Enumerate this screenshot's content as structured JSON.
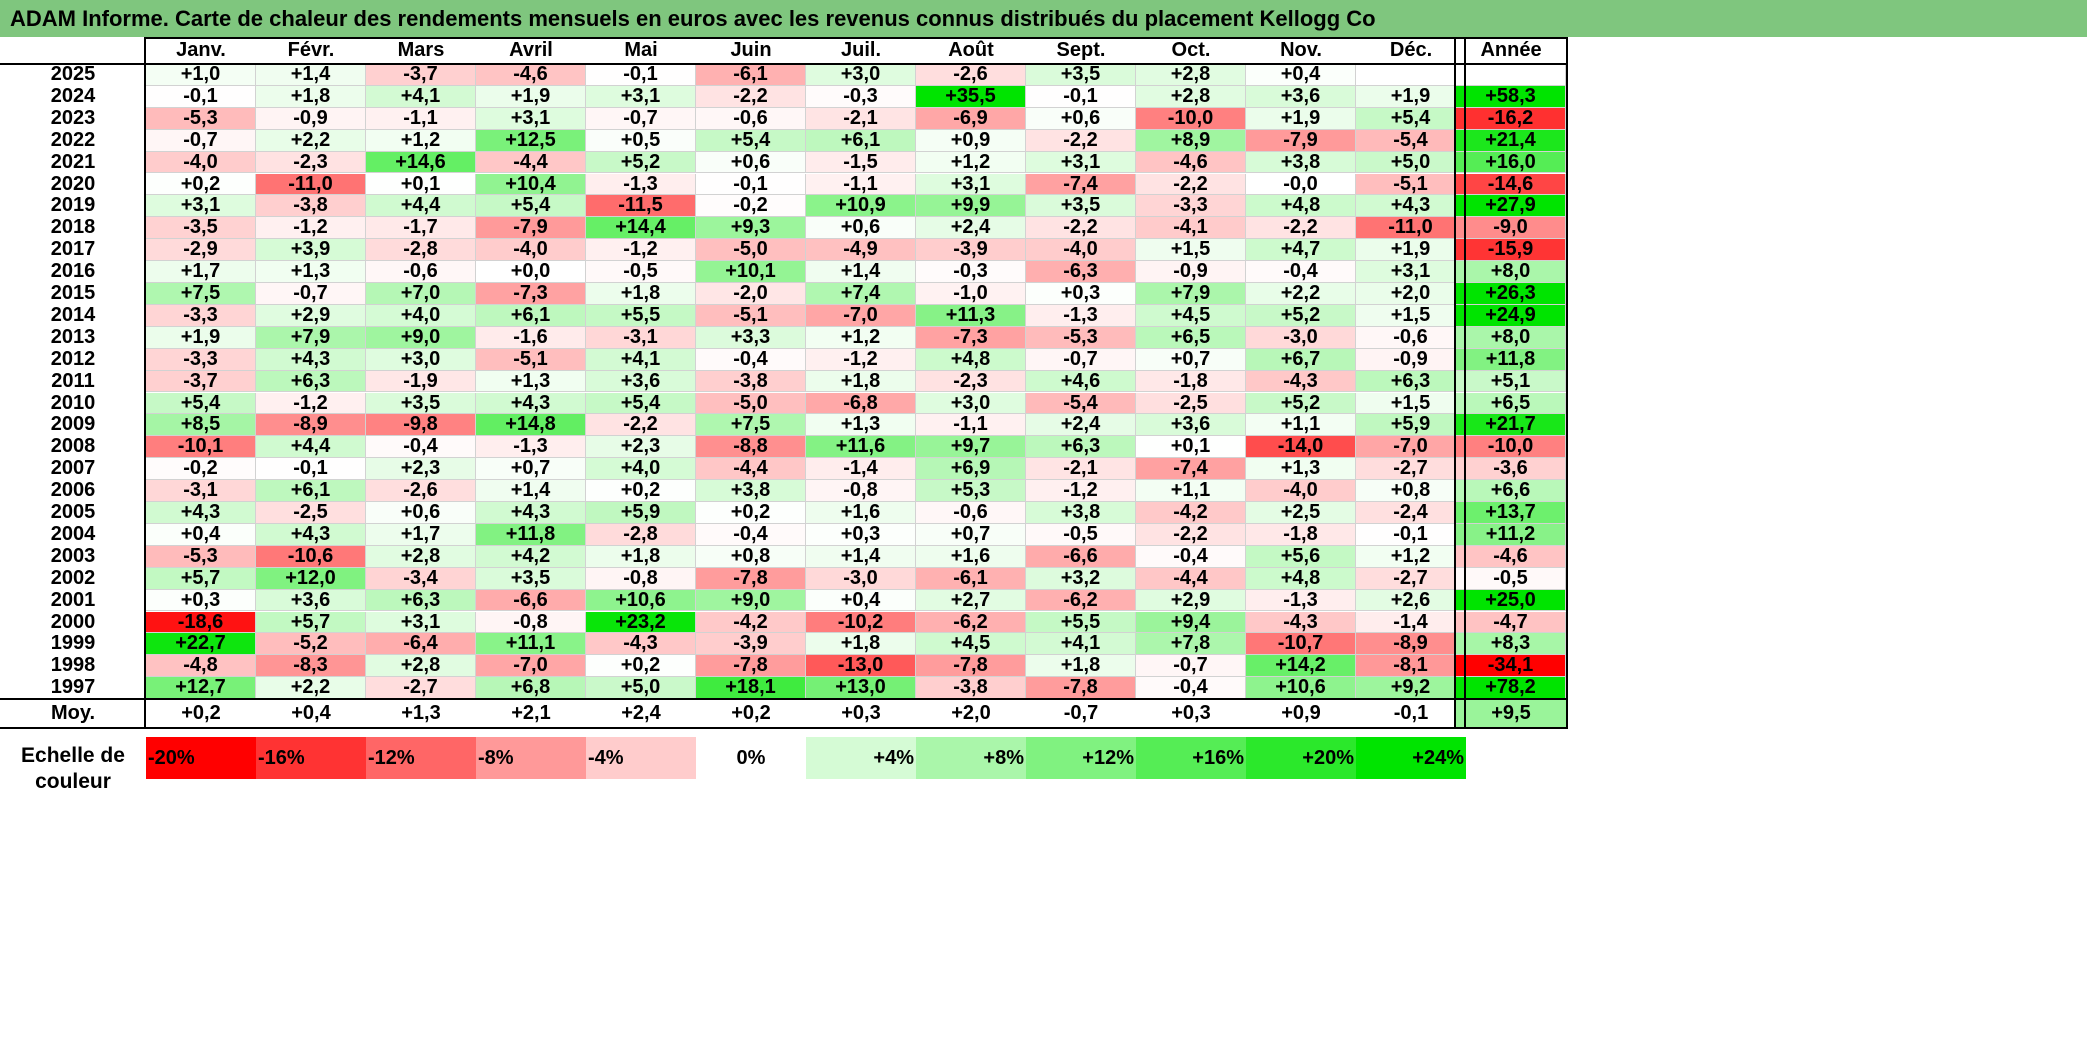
{
  "title": "ADAM Informe. Carte de chaleur des rendements mensuels en euros avec les revenus connus distribués du placement Kellogg Co",
  "chart_data": {
    "type": "heatmap",
    "columns": [
      "Janv.",
      "Févr.",
      "Mars",
      "Avril",
      "Mai",
      "Juin",
      "Juil.",
      "Août",
      "Sept.",
      "Oct.",
      "Nov.",
      "Déc."
    ],
    "year_header": "Année",
    "rows": [
      {
        "year": "2025",
        "values": [
          "+1,0",
          "+1,4",
          "-3,7",
          "-4,6",
          "-0,1",
          "-6,1",
          "+3,0",
          "-2,6",
          "+3,5",
          "+2,8",
          "+0,4",
          ""
        ],
        "annual": ""
      },
      {
        "year": "2024",
        "values": [
          "-0,1",
          "+1,8",
          "+4,1",
          "+1,9",
          "+3,1",
          "-2,2",
          "-0,3",
          "+35,5",
          "-0,1",
          "+2,8",
          "+3,6",
          "+1,9"
        ],
        "annual": "+58,3"
      },
      {
        "year": "2023",
        "values": [
          "-5,3",
          "-0,9",
          "-1,1",
          "+3,1",
          "-0,7",
          "-0,6",
          "-2,1",
          "-6,9",
          "+0,6",
          "-10,0",
          "+1,9",
          "+5,4"
        ],
        "annual": "-16,2"
      },
      {
        "year": "2022",
        "values": [
          "-0,7",
          "+2,2",
          "+1,2",
          "+12,5",
          "+0,5",
          "+5,4",
          "+6,1",
          "+0,9",
          "-2,2",
          "+8,9",
          "-7,9",
          "-5,4"
        ],
        "annual": "+21,4"
      },
      {
        "year": "2021",
        "values": [
          "-4,0",
          "-2,3",
          "+14,6",
          "-4,4",
          "+5,2",
          "+0,6",
          "-1,5",
          "+1,2",
          "+3,1",
          "-4,6",
          "+3,8",
          "+5,0"
        ],
        "annual": "+16,0"
      },
      {
        "year": "2020",
        "values": [
          "+0,2",
          "-11,0",
          "+0,1",
          "+10,4",
          "-1,3",
          "-0,1",
          "-1,1",
          "+3,1",
          "-7,4",
          "-2,2",
          "-0,0",
          "-5,1"
        ],
        "annual": "-14,6"
      },
      {
        "year": "2019",
        "values": [
          "+3,1",
          "-3,8",
          "+4,4",
          "+5,4",
          "-11,5",
          "-0,2",
          "+10,9",
          "+9,9",
          "+3,5",
          "-3,3",
          "+4,8",
          "+4,3"
        ],
        "annual": "+27,9"
      },
      {
        "year": "2018",
        "values": [
          "-3,5",
          "-1,2",
          "-1,7",
          "-7,9",
          "+14,4",
          "+9,3",
          "+0,6",
          "+2,4",
          "-2,2",
          "-4,1",
          "-2,2",
          "-11,0"
        ],
        "annual": "-9,0"
      },
      {
        "year": "2017",
        "values": [
          "-2,9",
          "+3,9",
          "-2,8",
          "-4,0",
          "-1,2",
          "-5,0",
          "-4,9",
          "-3,9",
          "-4,0",
          "+1,5",
          "+4,7",
          "+1,9"
        ],
        "annual": "-15,9"
      },
      {
        "year": "2016",
        "values": [
          "+1,7",
          "+1,3",
          "-0,6",
          "+0,0",
          "-0,5",
          "+10,1",
          "+1,4",
          "-0,3",
          "-6,3",
          "-0,9",
          "-0,4",
          "+3,1"
        ],
        "annual": "+8,0"
      },
      {
        "year": "2015",
        "values": [
          "+7,5",
          "-0,7",
          "+7,0",
          "-7,3",
          "+1,8",
          "-2,0",
          "+7,4",
          "-1,0",
          "+0,3",
          "+7,9",
          "+2,2",
          "+2,0"
        ],
        "annual": "+26,3"
      },
      {
        "year": "2014",
        "values": [
          "-3,3",
          "+2,9",
          "+4,0",
          "+6,1",
          "+5,5",
          "-5,1",
          "-7,0",
          "+11,3",
          "-1,3",
          "+4,5",
          "+5,2",
          "+1,5"
        ],
        "annual": "+24,9"
      },
      {
        "year": "2013",
        "values": [
          "+1,9",
          "+7,9",
          "+9,0",
          "-1,6",
          "-3,1",
          "+3,3",
          "+1,2",
          "-7,3",
          "-5,3",
          "+6,5",
          "-3,0",
          "-0,6"
        ],
        "annual": "+8,0"
      },
      {
        "year": "2012",
        "values": [
          "-3,3",
          "+4,3",
          "+3,0",
          "-5,1",
          "+4,1",
          "-0,4",
          "-1,2",
          "+4,8",
          "-0,7",
          "+0,7",
          "+6,7",
          "-0,9"
        ],
        "annual": "+11,8"
      },
      {
        "year": "2011",
        "values": [
          "-3,7",
          "+6,3",
          "-1,9",
          "+1,3",
          "+3,6",
          "-3,8",
          "+1,8",
          "-2,3",
          "+4,6",
          "-1,8",
          "-4,3",
          "+6,3"
        ],
        "annual": "+5,1"
      },
      {
        "year": "2010",
        "values": [
          "+5,4",
          "-1,2",
          "+3,5",
          "+4,3",
          "+5,4",
          "-5,0",
          "-6,8",
          "+3,0",
          "-5,4",
          "-2,5",
          "+5,2",
          "+1,5"
        ],
        "annual": "+6,5"
      },
      {
        "year": "2009",
        "values": [
          "+8,5",
          "-8,9",
          "-9,8",
          "+14,8",
          "-2,2",
          "+7,5",
          "+1,3",
          "-1,1",
          "+2,4",
          "+3,6",
          "+1,1",
          "+5,9"
        ],
        "annual": "+21,7"
      },
      {
        "year": "2008",
        "values": [
          "-10,1",
          "+4,4",
          "-0,4",
          "-1,3",
          "+2,3",
          "-8,8",
          "+11,6",
          "+9,7",
          "+6,3",
          "+0,1",
          "-14,0",
          "-7,0"
        ],
        "annual": "-10,0"
      },
      {
        "year": "2007",
        "values": [
          "-0,2",
          "-0,1",
          "+2,3",
          "+0,7",
          "+4,0",
          "-4,4",
          "-1,4",
          "+6,9",
          "-2,1",
          "-7,4",
          "+1,3",
          "-2,7"
        ],
        "annual": "-3,6"
      },
      {
        "year": "2006",
        "values": [
          "-3,1",
          "+6,1",
          "-2,6",
          "+1,4",
          "+0,2",
          "+3,8",
          "-0,8",
          "+5,3",
          "-1,2",
          "+1,1",
          "-4,0",
          "+0,8"
        ],
        "annual": "+6,6"
      },
      {
        "year": "2005",
        "values": [
          "+4,3",
          "-2,5",
          "+0,6",
          "+4,3",
          "+5,9",
          "+0,2",
          "+1,6",
          "-0,6",
          "+3,8",
          "-4,2",
          "+2,5",
          "-2,4"
        ],
        "annual": "+13,7"
      },
      {
        "year": "2004",
        "values": [
          "+0,4",
          "+4,3",
          "+1,7",
          "+11,8",
          "-2,8",
          "-0,4",
          "+0,3",
          "+0,7",
          "-0,5",
          "-2,2",
          "-1,8",
          "-0,1"
        ],
        "annual": "+11,2"
      },
      {
        "year": "2003",
        "values": [
          "-5,3",
          "-10,6",
          "+2,8",
          "+4,2",
          "+1,8",
          "+0,8",
          "+1,4",
          "+1,6",
          "-6,6",
          "-0,4",
          "+5,6",
          "+1,2"
        ],
        "annual": "-4,6"
      },
      {
        "year": "2002",
        "values": [
          "+5,7",
          "+12,0",
          "-3,4",
          "+3,5",
          "-0,8",
          "-7,8",
          "-3,0",
          "-6,1",
          "+3,2",
          "-4,4",
          "+4,8",
          "-2,7"
        ],
        "annual": "-0,5"
      },
      {
        "year": "2001",
        "values": [
          "+0,3",
          "+3,6",
          "+6,3",
          "-6,6",
          "+10,6",
          "+9,0",
          "+0,4",
          "+2,7",
          "-6,2",
          "+2,9",
          "-1,3",
          "+2,6"
        ],
        "annual": "+25,0"
      },
      {
        "year": "2000",
        "values": [
          "-18,6",
          "+5,7",
          "+3,1",
          "-0,8",
          "+23,2",
          "-4,2",
          "-10,2",
          "-6,2",
          "+5,5",
          "+9,4",
          "-4,3",
          "-1,4"
        ],
        "annual": "-4,7"
      },
      {
        "year": "1999",
        "values": [
          "+22,7",
          "-5,2",
          "-6,4",
          "+11,1",
          "-4,3",
          "-3,9",
          "+1,8",
          "+4,5",
          "+4,1",
          "+7,8",
          "-10,7",
          "-8,9"
        ],
        "annual": "+8,3"
      },
      {
        "year": "1998",
        "values": [
          "-4,8",
          "-8,3",
          "+2,8",
          "-7,0",
          "+0,2",
          "-7,8",
          "-13,0",
          "-7,8",
          "+1,8",
          "-0,7",
          "+14,2",
          "-8,1"
        ],
        "annual": "-34,1"
      },
      {
        "year": "1997",
        "values": [
          "+12,7",
          "+2,2",
          "-2,7",
          "+6,8",
          "+5,0",
          "+18,1",
          "+13,0",
          "-3,8",
          "-7,8",
          "-0,4",
          "+10,6",
          "+9,2"
        ],
        "annual": "+78,2"
      }
    ],
    "average": {
      "label": "Moy.",
      "values": [
        "+0,2",
        "+0,4",
        "+1,3",
        "+2,1",
        "+2,4",
        "+0,2",
        "+0,3",
        "+2,0",
        "-0,7",
        "+0,3",
        "+0,9",
        "-0,1"
      ],
      "annual": "+9,5"
    },
    "scale": {
      "label_line1": "Echelle de",
      "label_line2": "couleur",
      "items": [
        {
          "label": "-20%",
          "value": -20,
          "color": "#ff0000"
        },
        {
          "label": "-16%",
          "value": -16,
          "color": "#ff3333"
        },
        {
          "label": "-12%",
          "value": -12,
          "color": "#ff6666"
        },
        {
          "label": "-8%",
          "value": -8,
          "color": "#ff9999"
        },
        {
          "label": "-4%",
          "value": -4,
          "color": "#ffcccc"
        },
        {
          "label": "0%",
          "value": 0,
          "color": "#ffffff"
        },
        {
          "label": "+4%",
          "value": 4,
          "color": "#d5fbd5"
        },
        {
          "label": "+8%",
          "value": 8,
          "color": "#aaf6aa"
        },
        {
          "label": "+12%",
          "value": 12,
          "color": "#80f280"
        },
        {
          "label": "+16%",
          "value": 16,
          "color": "#55ed55"
        },
        {
          "label": "+20%",
          "value": 20,
          "color": "#2be82b"
        },
        {
          "label": "+24%",
          "value": 24,
          "color": "#00e400"
        }
      ]
    },
    "colors": {
      "negative_max": "#ff0000",
      "neutral": "#ffffff",
      "positive_max": "#00e400",
      "title_bg": "#7fc67e"
    },
    "color_range": {
      "negative": -20,
      "positive": 24
    }
  }
}
